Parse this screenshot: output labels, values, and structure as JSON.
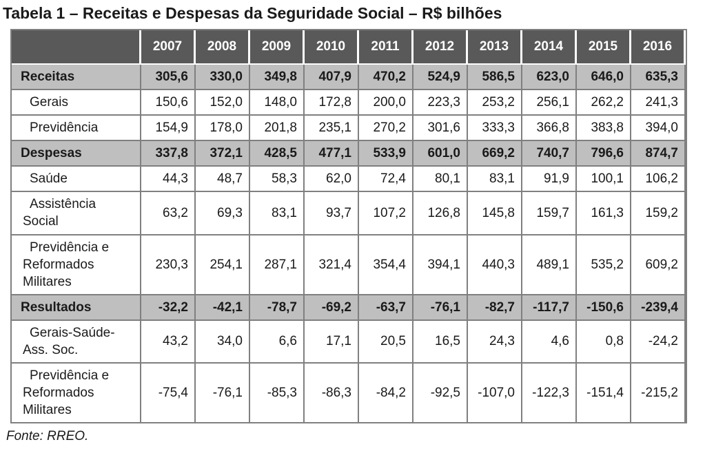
{
  "title": "Tabela 1 – Receitas e Despesas da Seguridade Social – R$ bilhões",
  "source": "Fonte: RREO.",
  "table": {
    "years": [
      "2007",
      "2008",
      "2009",
      "2010",
      "2011",
      "2012",
      "2013",
      "2014",
      "2015",
      "2016"
    ],
    "rows": [
      {
        "label": "Receitas",
        "type": "section",
        "values": [
          "305,6",
          "330,0",
          "349,8",
          "407,9",
          "470,2",
          "524,9",
          "586,5",
          "623,0",
          "646,0",
          "635,3"
        ]
      },
      {
        "label": "Gerais",
        "type": "sub",
        "values": [
          "150,6",
          "152,0",
          "148,0",
          "172,8",
          "200,0",
          "223,3",
          "253,2",
          "256,1",
          "262,2",
          "241,3"
        ]
      },
      {
        "label": "Previdência",
        "type": "sub",
        "values": [
          "154,9",
          "178,0",
          "201,8",
          "235,1",
          "270,2",
          "301,6",
          "333,3",
          "366,8",
          "383,8",
          "394,0"
        ]
      },
      {
        "label": "Despesas",
        "type": "section",
        "values": [
          "337,8",
          "372,1",
          "428,5",
          "477,1",
          "533,9",
          "601,0",
          "669,2",
          "740,7",
          "796,6",
          "874,7"
        ]
      },
      {
        "label": "Saúde",
        "type": "sub",
        "values": [
          "44,3",
          "48,7",
          "58,3",
          "62,0",
          "72,4",
          "80,1",
          "83,1",
          "91,9",
          "100,1",
          "106,2"
        ]
      },
      {
        "label": "Assistência\nSocial",
        "type": "sub",
        "values": [
          "63,2",
          "69,3",
          "83,1",
          "93,7",
          "107,2",
          "126,8",
          "145,8",
          "159,7",
          "161,3",
          "159,2"
        ]
      },
      {
        "label": "Previdência e\nReformados\nMilitares",
        "type": "sub",
        "values": [
          "230,3",
          "254,1",
          "287,1",
          "321,4",
          "354,4",
          "394,1",
          "440,3",
          "489,1",
          "535,2",
          "609,2"
        ]
      },
      {
        "label": "Resultados",
        "type": "section",
        "values": [
          "-32,2",
          "-42,1",
          "-78,7",
          "-69,2",
          "-63,7",
          "-76,1",
          "-82,7",
          "-117,7",
          "-150,6",
          "-239,4"
        ]
      },
      {
        "label": "Gerais-Saúde-\nAss. Soc.",
        "type": "sub",
        "values": [
          "43,2",
          "34,0",
          "6,6",
          "17,1",
          "20,5",
          "16,5",
          "24,3",
          "4,6",
          "0,8",
          "-24,2"
        ]
      },
      {
        "label": "Previdência e\nReformados\nMilitares",
        "type": "sub",
        "values": [
          "-75,4",
          "-76,1",
          "-85,3",
          "-86,3",
          "-84,2",
          "-92,5",
          "-107,0",
          "-122,3",
          "-151,4",
          "-215,2"
        ]
      }
    ]
  },
  "colors": {
    "header_bg": "#595959",
    "header_text": "#ffffff",
    "section_bg": "#bfbfbf",
    "border": "#7f7f7f",
    "text": "#1a1a1a"
  }
}
